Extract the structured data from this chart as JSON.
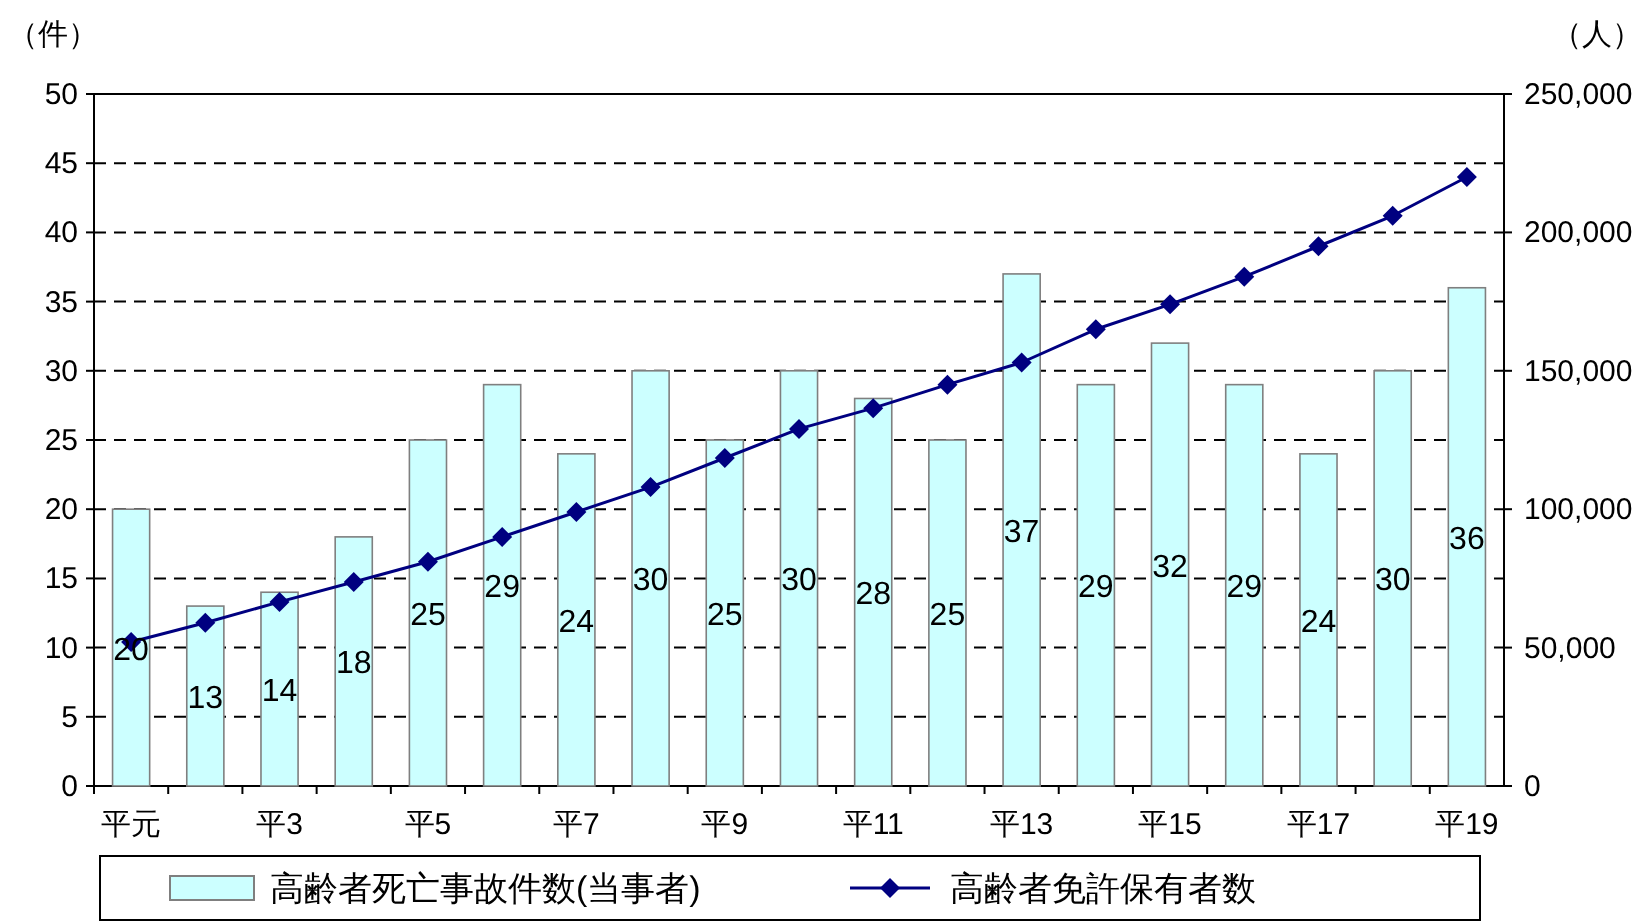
{
  "chart_data": {
    "type": "bar",
    "ylabel": "（件）",
    "y2label": "（人）",
    "categories": [
      "平元",
      null,
      "平3",
      null,
      "平5",
      null,
      "平7",
      null,
      "平9",
      null,
      "平11",
      null,
      "平13",
      null,
      "平15",
      null,
      "平17",
      null,
      "平19"
    ],
    "series": [
      {
        "name": "高齢者死亡事故件数(当事者)",
        "color": "#ccffff",
        "values": [
          20,
          13,
          14,
          18,
          25,
          29,
          24,
          30,
          25,
          30,
          28,
          25,
          37,
          29,
          32,
          29,
          24,
          30,
          36
        ],
        "value_labels": [
          "20",
          "13",
          "14",
          "18",
          "25",
          "29",
          "24",
          "30",
          "25",
          "30",
          "28",
          "25",
          "37",
          "29",
          "32",
          "29",
          "24",
          "30",
          "36"
        ]
      },
      {
        "name": "高齢者免許保有者数",
        "type": "line",
        "axis": "y2",
        "color": "#000080",
        "marker": "diamond",
        "values": [
          52000,
          59000,
          66500,
          73700,
          81000,
          90000,
          99000,
          108000,
          118500,
          129000,
          136500,
          145000,
          153000,
          165000,
          174000,
          184000,
          195000,
          206000,
          220000
        ]
      }
    ],
    "ylim": [
      0,
      50
    ],
    "yticks": [
      0,
      5,
      10,
      15,
      20,
      25,
      30,
      35,
      40,
      45,
      50
    ],
    "y2lim": [
      0,
      250000
    ],
    "y2ticks": [
      {
        "value": 0,
        "label": "0"
      },
      {
        "value": 50000,
        "label": "50,000"
      },
      {
        "value": 100000,
        "label": "100,000"
      },
      {
        "value": 150000,
        "label": "150,000"
      },
      {
        "value": 200000,
        "label": "200,000"
      },
      {
        "value": 250000,
        "label": "250,000"
      }
    ],
    "grid": "y",
    "legend": "bottom"
  }
}
